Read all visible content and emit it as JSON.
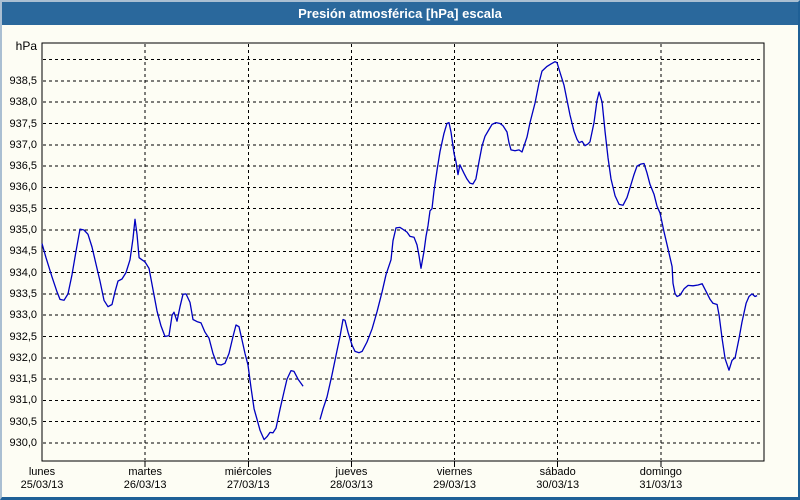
{
  "window": {
    "title": "Presión atmosférica [hPa] escala"
  },
  "y_axis": {
    "unit": "hPa",
    "tick_labels": [
      "938,5",
      "938,0",
      "937,5",
      "937,0",
      "936,5",
      "936,0",
      "935,5",
      "935,0",
      "934,5",
      "934,0",
      "933,5",
      "933,0",
      "932,5",
      "932,0",
      "931,5",
      "931,0",
      "930,5",
      "930,0"
    ],
    "tick_values": [
      938.5,
      938.0,
      937.5,
      937.0,
      936.5,
      936.0,
      935.5,
      935.0,
      934.5,
      934.0,
      933.5,
      933.0,
      932.5,
      932.0,
      931.5,
      931.0,
      930.5,
      930.0
    ]
  },
  "x_axis": {
    "days": [
      {
        "name": "lunes",
        "date": "25/03/13"
      },
      {
        "name": "martes",
        "date": "26/03/13"
      },
      {
        "name": "miércoles",
        "date": "27/03/13"
      },
      {
        "name": "jueves",
        "date": "28/03/13"
      },
      {
        "name": "viernes",
        "date": "29/03/13"
      },
      {
        "name": "sábado",
        "date": "30/03/13"
      },
      {
        "name": "domingo",
        "date": "31/03/13"
      }
    ]
  },
  "colors": {
    "titlebar": "#2a689c",
    "line": "#0000c0",
    "grid": "#000000",
    "background": "#fdfdf4"
  },
  "chart_data": {
    "type": "line",
    "title": "Presión atmosférica [hPa] escala",
    "ylabel": "hPa",
    "xlabel": "",
    "ylim": [
      930.0,
      939.0
    ],
    "y_gridline_step": 0.5,
    "xlim_days": [
      0,
      7
    ],
    "x_unit": "days since lunes 25/03/13 00:00",
    "grid": true,
    "legend": "none",
    "note": "data gap Wednesday ~13h-17h (between segments)",
    "series": [
      {
        "name": "Presión atmosférica [hPa]",
        "color": "#0000c0",
        "segments": [
          [
            [
              0,
              934.68
            ],
            [
              0.039,
              934.35
            ],
            [
              0.097,
              933.9
            ],
            [
              0.145,
              933.55
            ],
            [
              0.175,
              933.37
            ],
            [
              0.213,
              933.35
            ],
            [
              0.252,
              933.5
            ],
            [
              0.291,
              933.95
            ],
            [
              0.33,
              934.5
            ],
            [
              0.368,
              935.02
            ],
            [
              0.407,
              935.0
            ],
            [
              0.446,
              934.9
            ],
            [
              0.485,
              934.6
            ],
            [
              0.524,
              934.2
            ],
            [
              0.562,
              933.8
            ],
            [
              0.601,
              933.35
            ],
            [
              0.64,
              933.2
            ],
            [
              0.679,
              933.25
            ],
            [
              0.708,
              933.55
            ],
            [
              0.737,
              933.8
            ],
            [
              0.776,
              933.85
            ],
            [
              0.814,
              934.0
            ],
            [
              0.853,
              934.3
            ],
            [
              0.882,
              934.8
            ],
            [
              0.902,
              935.25
            ],
            [
              0.921,
              934.9
            ],
            [
              0.941,
              934.35
            ],
            [
              0.97,
              934.3
            ],
            [
              0.999,
              934.25
            ],
            [
              1.037,
              934.1
            ],
            [
              1.076,
              933.6
            ],
            [
              1.115,
              933.1
            ],
            [
              1.154,
              932.75
            ],
            [
              1.193,
              932.5
            ],
            [
              1.231,
              932.52
            ],
            [
              1.261,
              933.0
            ],
            [
              1.28,
              933.07
            ],
            [
              1.309,
              932.86
            ],
            [
              1.338,
              933.2
            ],
            [
              1.367,
              933.49
            ],
            [
              1.396,
              933.5
            ],
            [
              1.435,
              933.3
            ],
            [
              1.464,
              932.9
            ],
            [
              1.503,
              932.85
            ],
            [
              1.542,
              932.82
            ],
            [
              1.58,
              932.6
            ],
            [
              1.619,
              932.46
            ],
            [
              1.658,
              932.1
            ],
            [
              1.697,
              931.85
            ],
            [
              1.736,
              931.83
            ],
            [
              1.774,
              931.87
            ],
            [
              1.813,
              932.1
            ],
            [
              1.852,
              932.5
            ],
            [
              1.881,
              932.77
            ],
            [
              1.91,
              932.73
            ],
            [
              1.939,
              932.42
            ],
            [
              1.968,
              932.1
            ],
            [
              1.997,
              931.83
            ],
            [
              2.026,
              931.3
            ],
            [
              2.056,
              930.8
            ],
            [
              2.085,
              930.55
            ],
            [
              2.114,
              930.3
            ],
            [
              2.153,
              930.08
            ],
            [
              2.182,
              930.15
            ],
            [
              2.211,
              930.25
            ],
            [
              2.24,
              930.24
            ],
            [
              2.269,
              930.35
            ],
            [
              2.308,
              930.8
            ],
            [
              2.346,
              931.2
            ],
            [
              2.375,
              931.5
            ],
            [
              2.414,
              931.7
            ],
            [
              2.443,
              931.68
            ],
            [
              2.482,
              931.5
            ],
            [
              2.531,
              931.33
            ]
          ],
          [
            [
              2.695,
              930.55
            ],
            [
              2.724,
              930.8
            ],
            [
              2.763,
              931.08
            ],
            [
              2.812,
              931.6
            ],
            [
              2.86,
              932.17
            ],
            [
              2.889,
              932.5
            ],
            [
              2.918,
              932.9
            ],
            [
              2.938,
              932.88
            ],
            [
              2.967,
              932.6
            ],
            [
              3.006,
              932.3
            ],
            [
              3.035,
              932.15
            ],
            [
              3.074,
              932.12
            ],
            [
              3.103,
              932.15
            ],
            [
              3.151,
              932.37
            ],
            [
              3.2,
              932.68
            ],
            [
              3.248,
              933.08
            ],
            [
              3.297,
              933.55
            ],
            [
              3.335,
              933.95
            ],
            [
              3.384,
              934.3
            ],
            [
              3.403,
              934.75
            ],
            [
              3.432,
              935.05
            ],
            [
              3.471,
              935.06
            ],
            [
              3.51,
              935.0
            ],
            [
              3.539,
              934.95
            ],
            [
              3.568,
              934.85
            ],
            [
              3.607,
              934.83
            ],
            [
              3.636,
              934.65
            ],
            [
              3.655,
              934.4
            ],
            [
              3.675,
              934.1
            ],
            [
              3.704,
              934.5
            ],
            [
              3.723,
              934.85
            ],
            [
              3.742,
              935.1
            ],
            [
              3.762,
              935.45
            ],
            [
              3.781,
              935.5
            ],
            [
              3.8,
              935.9
            ],
            [
              3.83,
              936.4
            ],
            [
              3.859,
              936.84
            ],
            [
              3.897,
              937.26
            ],
            [
              3.926,
              937.5
            ],
            [
              3.946,
              937.52
            ],
            [
              3.965,
              937.3
            ],
            [
              3.994,
              936.8
            ],
            [
              4.014,
              936.6
            ],
            [
              4.033,
              936.3
            ],
            [
              4.052,
              936.53
            ],
            [
              4.091,
              936.33
            ],
            [
              4.12,
              936.2
            ],
            [
              4.149,
              936.1
            ],
            [
              4.178,
              936.08
            ],
            [
              4.207,
              936.2
            ],
            [
              4.237,
              936.6
            ],
            [
              4.266,
              936.97
            ],
            [
              4.295,
              937.2
            ],
            [
              4.334,
              937.36
            ],
            [
              4.363,
              937.48
            ],
            [
              4.402,
              937.52
            ],
            [
              4.44,
              937.5
            ],
            [
              4.469,
              937.45
            ],
            [
              4.508,
              937.3
            ],
            [
              4.528,
              937.05
            ],
            [
              4.547,
              936.88
            ],
            [
              4.586,
              936.86
            ],
            [
              4.625,
              936.88
            ],
            [
              4.654,
              936.83
            ],
            [
              4.702,
              937.18
            ],
            [
              4.731,
              937.52
            ],
            [
              4.78,
              937.98
            ],
            [
              4.819,
              938.45
            ],
            [
              4.848,
              938.73
            ],
            [
              4.896,
              938.84
            ],
            [
              4.935,
              938.9
            ],
            [
              4.974,
              938.95
            ],
            [
              4.993,
              938.93
            ],
            [
              5.022,
              938.7
            ],
            [
              5.061,
              938.4
            ],
            [
              5.09,
              938.05
            ],
            [
              5.119,
              937.7
            ],
            [
              5.158,
              937.32
            ],
            [
              5.187,
              937.13
            ],
            [
              5.207,
              937.05
            ],
            [
              5.236,
              937.08
            ],
            [
              5.265,
              936.98
            ],
            [
              5.294,
              937.02
            ],
            [
              5.313,
              937.07
            ],
            [
              5.352,
              937.52
            ],
            [
              5.381,
              938.04
            ],
            [
              5.401,
              938.24
            ],
            [
              5.43,
              938.0
            ],
            [
              5.459,
              937.3
            ],
            [
              5.488,
              936.7
            ],
            [
              5.517,
              936.2
            ],
            [
              5.556,
              935.8
            ],
            [
              5.595,
              935.6
            ],
            [
              5.633,
              935.58
            ],
            [
              5.672,
              935.76
            ],
            [
              5.701,
              935.99
            ],
            [
              5.74,
              936.3
            ],
            [
              5.769,
              936.5
            ],
            [
              5.808,
              936.55
            ],
            [
              5.837,
              936.56
            ],
            [
              5.866,
              936.34
            ],
            [
              5.895,
              936.07
            ],
            [
              5.934,
              935.84
            ],
            [
              5.963,
              935.56
            ],
            [
              5.992,
              935.4
            ],
            [
              6.031,
              934.95
            ],
            [
              6.07,
              934.55
            ],
            [
              6.109,
              934.14
            ],
            [
              6.118,
              933.75
            ],
            [
              6.138,
              933.5
            ],
            [
              6.157,
              933.44
            ],
            [
              6.186,
              933.47
            ],
            [
              6.225,
              933.62
            ],
            [
              6.264,
              933.7
            ],
            [
              6.312,
              933.69
            ],
            [
              6.361,
              933.71
            ],
            [
              6.4,
              933.74
            ],
            [
              6.438,
              933.56
            ],
            [
              6.477,
              933.37
            ],
            [
              6.506,
              933.28
            ],
            [
              6.545,
              933.25
            ],
            [
              6.565,
              933.0
            ],
            [
              6.594,
              932.45
            ],
            [
              6.623,
              931.98
            ],
            [
              6.661,
              931.71
            ],
            [
              6.69,
              931.94
            ],
            [
              6.72,
              932.0
            ],
            [
              6.758,
              932.45
            ],
            [
              6.787,
              932.84
            ],
            [
              6.826,
              933.28
            ],
            [
              6.855,
              933.44
            ],
            [
              6.884,
              933.5
            ],
            [
              6.913,
              933.44
            ],
            [
              6.933,
              933.46
            ]
          ]
        ]
      }
    ]
  }
}
